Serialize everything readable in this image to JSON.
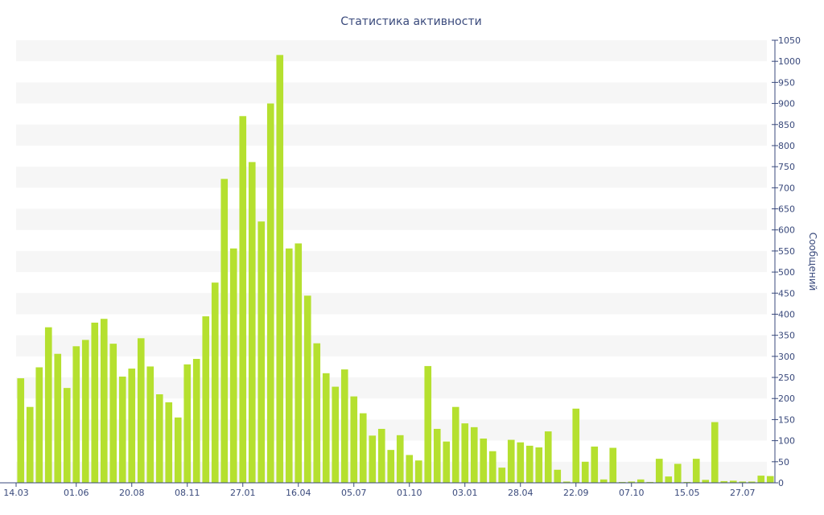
{
  "colors": {
    "bar": "#b5e02f",
    "band": "#f6f6f6",
    "axis": "#3a4a7c",
    "text": "#3a4a7c",
    "background": "#ffffff"
  },
  "chart_data": {
    "type": "bar",
    "title": "Статистика активности",
    "ylabel": "Сообщений",
    "xlabel": "",
    "ylim": [
      0,
      1050
    ],
    "y_ticks": [
      0,
      50,
      100,
      150,
      200,
      250,
      300,
      350,
      400,
      450,
      500,
      550,
      600,
      650,
      700,
      750,
      800,
      850,
      900,
      950,
      1000,
      1050
    ],
    "y_axis_side": "right",
    "grid": "alternating horizontal bands",
    "x_tick_labels": [
      {
        "label": "14.03",
        "index": 0
      },
      {
        "label": "01.06",
        "index": 6
      },
      {
        "label": "20.08",
        "index": 12
      },
      {
        "label": "08.11",
        "index": 18
      },
      {
        "label": "27.01",
        "index": 24
      },
      {
        "label": "16.04",
        "index": 30
      },
      {
        "label": "05.07",
        "index": 36
      },
      {
        "label": "01.10",
        "index": 42
      },
      {
        "label": "03.01",
        "index": 48
      },
      {
        "label": "28.04",
        "index": 54
      },
      {
        "label": "22.09",
        "index": 60
      },
      {
        "label": "07.10",
        "index": 66
      },
      {
        "label": "15.05",
        "index": 72
      },
      {
        "label": "27.07",
        "index": 78
      }
    ],
    "values": [
      248,
      180,
      274,
      369,
      306,
      225,
      324,
      339,
      380,
      389,
      330,
      252,
      271,
      343,
      276,
      210,
      191,
      155,
      281,
      294,
      395,
      475,
      721,
      556,
      870,
      761,
      620,
      900,
      1015,
      556,
      568,
      444,
      331,
      260,
      228,
      269,
      205,
      165,
      112,
      128,
      78,
      113,
      66,
      53,
      277,
      128,
      98,
      180,
      141,
      132,
      105,
      75,
      36,
      102,
      96,
      88,
      84,
      122,
      31,
      3,
      176,
      50,
      86,
      8,
      83,
      2,
      3,
      8,
      2,
      57,
      15,
      45,
      2,
      57,
      7,
      144,
      4,
      5,
      3,
      3,
      17,
      16
    ]
  }
}
